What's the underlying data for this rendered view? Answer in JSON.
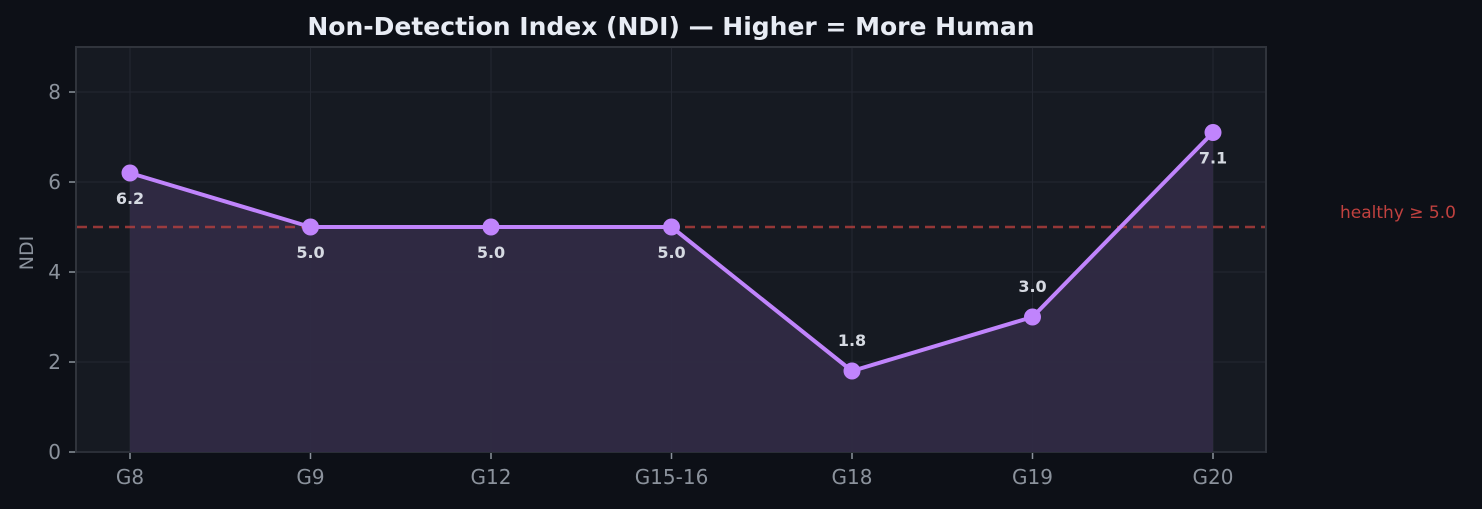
{
  "chart_data": {
    "type": "line",
    "title": "Non-Detection Index (NDI) — Higher = More Human",
    "xlabel": "",
    "ylabel": "NDI",
    "categories": [
      "G8",
      "G9",
      "G12",
      "G15-16",
      "G18",
      "G19",
      "G20"
    ],
    "series": [
      {
        "name": "NDI",
        "values": [
          6.2,
          5.0,
          5.0,
          5.0,
          1.8,
          3.0,
          7.1
        ],
        "color": "#c084fc"
      }
    ],
    "data_labels": [
      "6.2",
      "5.0",
      "5.0",
      "5.0",
      "1.8",
      "3.0",
      "7.1"
    ],
    "ylim": [
      0,
      9
    ],
    "yticks": [
      0,
      2,
      4,
      6,
      8
    ],
    "grid": true,
    "fill_under_line": true,
    "reference_line": {
      "y": 5.0,
      "label": "healthy ≥ 5.0",
      "color": "#c0413f",
      "style": "dashed"
    },
    "legend": null
  },
  "colors": {
    "background": "#0d1017",
    "plot_background": "#161a22",
    "line": "#c084fc",
    "fill": "#302a45",
    "reference": "#c0413f",
    "text": "#e8ecf4",
    "tick_text": "#8b929c"
  }
}
